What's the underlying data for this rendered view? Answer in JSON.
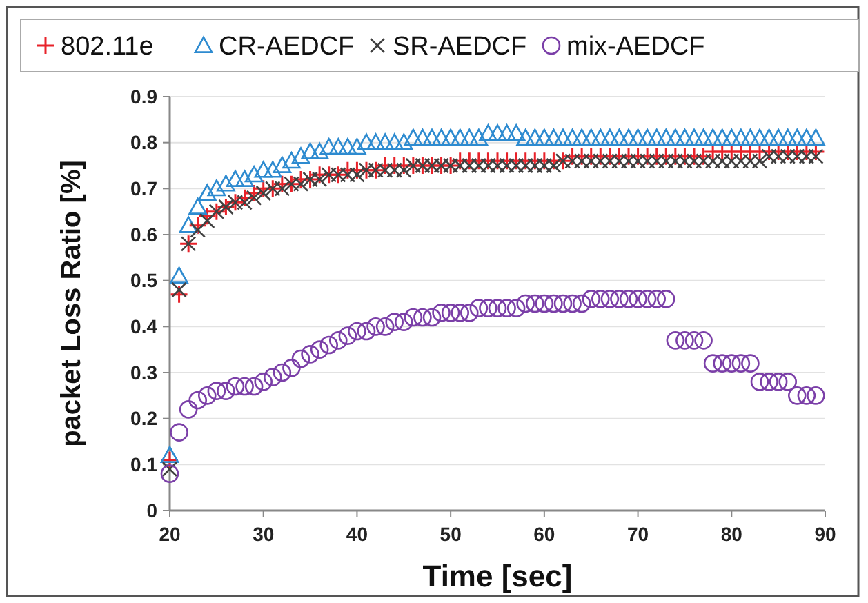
{
  "chart_data": {
    "type": "scatter",
    "xlabel": "Time [sec]",
    "ylabel": "packet Loss Ratio [%]",
    "x": [
      20,
      21,
      22,
      23,
      24,
      25,
      26,
      27,
      28,
      29,
      30,
      31,
      32,
      33,
      34,
      35,
      36,
      37,
      38,
      39,
      40,
      41,
      42,
      43,
      44,
      45,
      46,
      47,
      48,
      49,
      50,
      51,
      52,
      53,
      54,
      55,
      56,
      57,
      58,
      59,
      60,
      61,
      62,
      63,
      64,
      65,
      66,
      67,
      68,
      69,
      70,
      71,
      72,
      73,
      74,
      75,
      76,
      77,
      78,
      79,
      80,
      81,
      82,
      83,
      84,
      85,
      86,
      87,
      88,
      89
    ],
    "series": [
      {
        "name": "802.11e",
        "color": "#e8222a",
        "marker": "plus",
        "values": [
          0.11,
          0.47,
          0.58,
          0.62,
          0.64,
          0.65,
          0.66,
          0.67,
          0.68,
          0.69,
          0.7,
          0.7,
          0.71,
          0.71,
          0.72,
          0.72,
          0.73,
          0.73,
          0.73,
          0.74,
          0.74,
          0.74,
          0.74,
          0.75,
          0.75,
          0.75,
          0.75,
          0.75,
          0.75,
          0.75,
          0.75,
          0.76,
          0.76,
          0.76,
          0.76,
          0.76,
          0.76,
          0.76,
          0.76,
          0.76,
          0.76,
          0.76,
          0.76,
          0.77,
          0.77,
          0.77,
          0.77,
          0.77,
          0.77,
          0.77,
          0.77,
          0.77,
          0.77,
          0.77,
          0.77,
          0.77,
          0.77,
          0.77,
          0.78,
          0.78,
          0.78,
          0.78,
          0.78,
          0.78,
          0.78,
          0.78,
          0.78,
          0.78,
          0.78,
          0.78
        ]
      },
      {
        "name": "CR-AEDCF",
        "color": "#2e8bd0",
        "marker": "triangle",
        "values": [
          0.12,
          0.51,
          0.62,
          0.66,
          0.69,
          0.7,
          0.71,
          0.72,
          0.72,
          0.73,
          0.74,
          0.74,
          0.75,
          0.76,
          0.77,
          0.78,
          0.78,
          0.79,
          0.79,
          0.79,
          0.79,
          0.8,
          0.8,
          0.8,
          0.8,
          0.8,
          0.81,
          0.81,
          0.81,
          0.81,
          0.81,
          0.81,
          0.81,
          0.81,
          0.82,
          0.82,
          0.82,
          0.82,
          0.81,
          0.81,
          0.81,
          0.81,
          0.81,
          0.81,
          0.81,
          0.81,
          0.81,
          0.81,
          0.81,
          0.81,
          0.81,
          0.81,
          0.81,
          0.81,
          0.81,
          0.81,
          0.81,
          0.81,
          0.81,
          0.81,
          0.81,
          0.81,
          0.81,
          0.81,
          0.81,
          0.81,
          0.81,
          0.81,
          0.81,
          0.81
        ]
      },
      {
        "name": "SR-AEDCF",
        "color": "#404040",
        "marker": "cross",
        "values": [
          0.09,
          0.48,
          0.58,
          0.61,
          0.63,
          0.65,
          0.66,
          0.67,
          0.67,
          0.68,
          0.69,
          0.7,
          0.7,
          0.71,
          0.71,
          0.72,
          0.72,
          0.73,
          0.73,
          0.73,
          0.73,
          0.74,
          0.74,
          0.74,
          0.74,
          0.74,
          0.75,
          0.75,
          0.75,
          0.75,
          0.75,
          0.75,
          0.75,
          0.75,
          0.75,
          0.75,
          0.75,
          0.75,
          0.75,
          0.75,
          0.75,
          0.75,
          0.76,
          0.76,
          0.76,
          0.76,
          0.76,
          0.76,
          0.76,
          0.76,
          0.76,
          0.76,
          0.76,
          0.76,
          0.76,
          0.76,
          0.76,
          0.76,
          0.76,
          0.76,
          0.76,
          0.76,
          0.76,
          0.76,
          0.77,
          0.77,
          0.77,
          0.77,
          0.77,
          0.77
        ]
      },
      {
        "name": "mix-AEDCF",
        "color": "#7b3fa8",
        "marker": "circle",
        "values": [
          0.08,
          0.17,
          0.22,
          0.24,
          0.25,
          0.26,
          0.26,
          0.27,
          0.27,
          0.27,
          0.28,
          0.29,
          0.3,
          0.31,
          0.33,
          0.34,
          0.35,
          0.36,
          0.37,
          0.38,
          0.39,
          0.39,
          0.4,
          0.4,
          0.41,
          0.41,
          0.42,
          0.42,
          0.42,
          0.43,
          0.43,
          0.43,
          0.43,
          0.44,
          0.44,
          0.44,
          0.44,
          0.44,
          0.45,
          0.45,
          0.45,
          0.45,
          0.45,
          0.45,
          0.45,
          0.46,
          0.46,
          0.46,
          0.46,
          0.46,
          0.46,
          0.46,
          0.46,
          0.46,
          0.37,
          0.37,
          0.37,
          0.37,
          0.32,
          0.32,
          0.32,
          0.32,
          0.32,
          0.28,
          0.28,
          0.28,
          0.28,
          0.25,
          0.25,
          0.25
        ]
      }
    ],
    "xlim": [
      20,
      90
    ],
    "xticks": [
      20,
      30,
      40,
      50,
      60,
      70,
      80,
      90
    ],
    "ylim": [
      0,
      0.9
    ],
    "yticks": [
      0,
      0.1,
      0.2,
      0.3,
      0.4,
      0.5,
      0.6,
      0.7,
      0.8,
      0.9
    ],
    "grid": "y",
    "legend": "top"
  }
}
